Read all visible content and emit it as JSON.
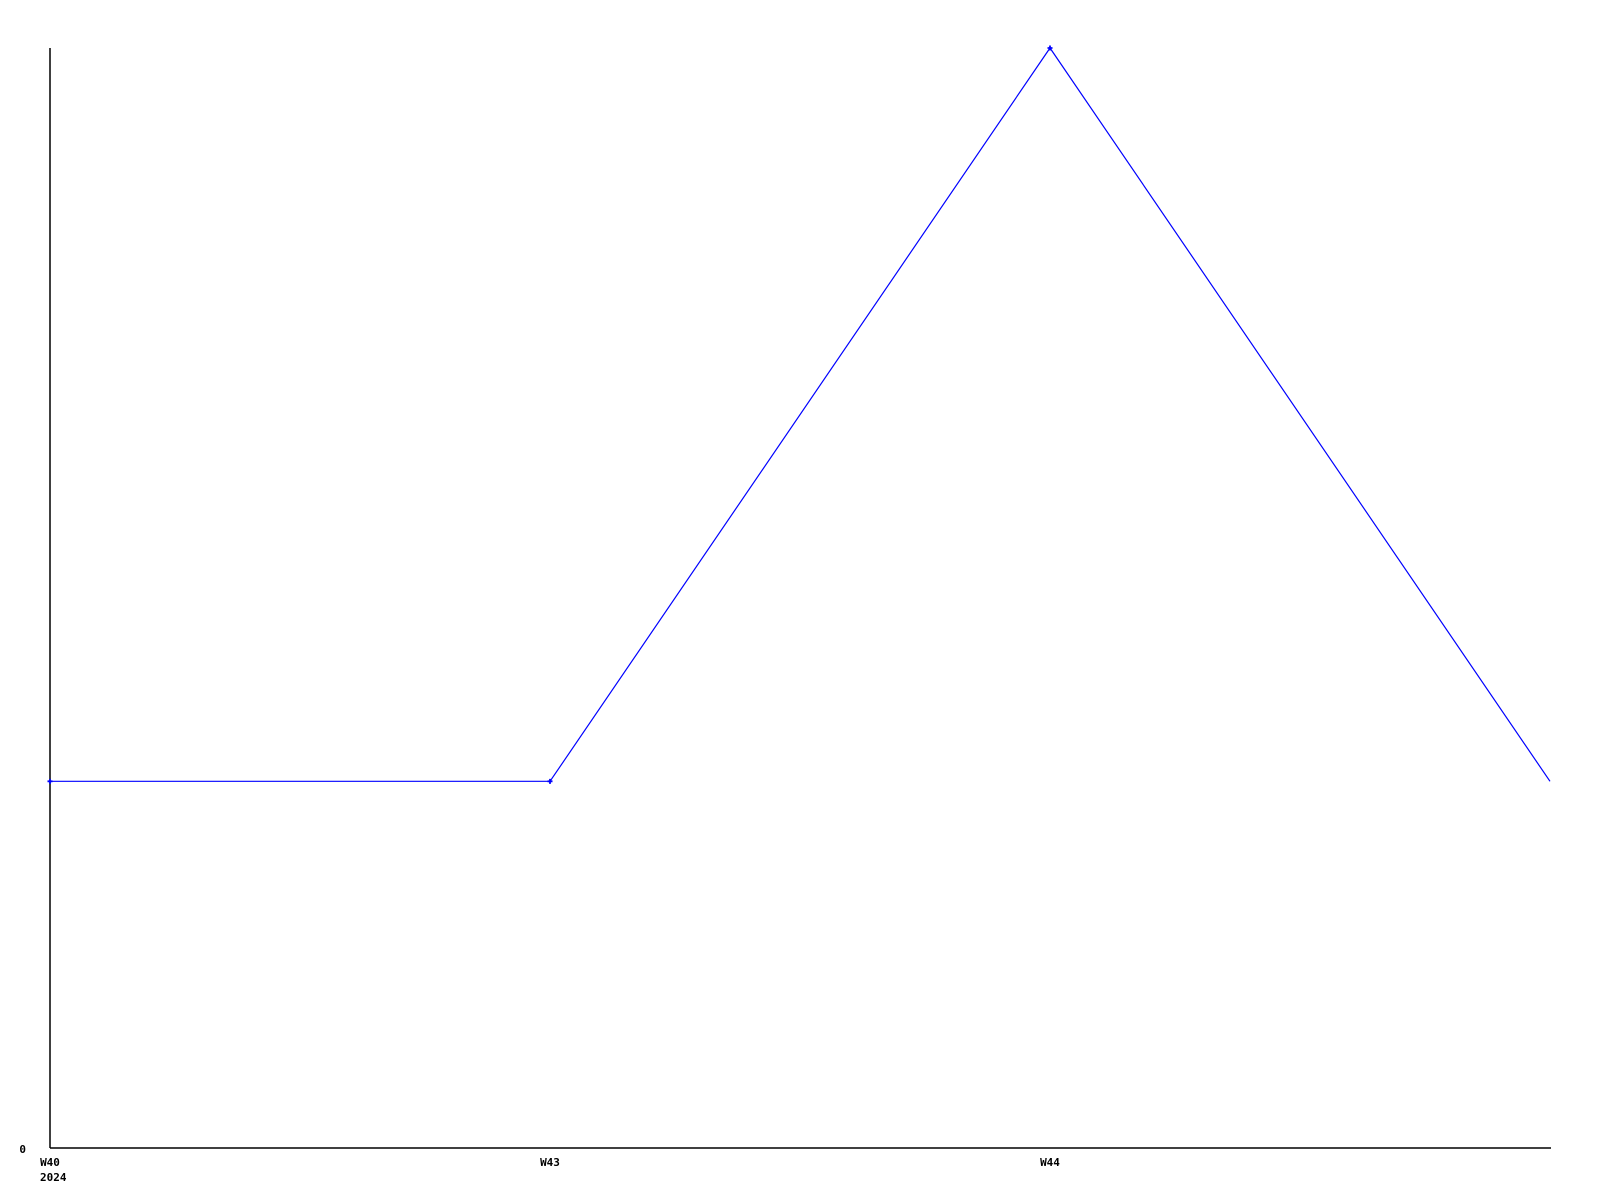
{
  "page": {
    "background_color": "#ffffff"
  },
  "chart_data": {
    "type": "line",
    "title": "",
    "xlabel": "",
    "ylabel": "",
    "grid": false,
    "legend": false,
    "line_color": "#0000ff",
    "axis_color": "#000000",
    "text_color": "#000000",
    "ylim": [
      0,
      3
    ],
    "y_zero_label": "0",
    "year_label": "2024",
    "points": [
      {
        "label": "W40",
        "value": 1,
        "marker": true
      },
      {
        "label": "W43",
        "value": 1,
        "marker": true
      },
      {
        "label": "W44",
        "value": 3,
        "marker": true
      },
      {
        "label": "",
        "value": 1,
        "marker": false
      }
    ]
  }
}
